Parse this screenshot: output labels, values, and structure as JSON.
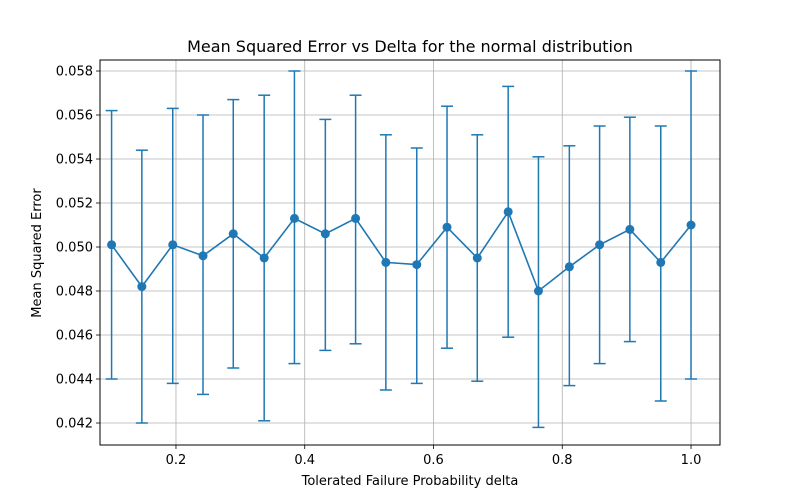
{
  "chart_data": {
    "type": "line",
    "title": "Mean Squared Error vs Delta for the normal distribution",
    "xlabel": "Tolerated Failure Probability delta",
    "ylabel": "Mean Squared Error",
    "xlim": [
      0.082,
      1.045
    ],
    "ylim": [
      0.041,
      0.0585
    ],
    "x_ticks": [
      0.2,
      0.4,
      0.6,
      0.8,
      1.0
    ],
    "x_tick_labels": [
      "0.2",
      "0.4",
      "0.6",
      "0.8",
      "1.0"
    ],
    "y_ticks": [
      0.042,
      0.044,
      0.046,
      0.048,
      0.05,
      0.052,
      0.054,
      0.056,
      0.058
    ],
    "y_tick_labels": [
      "0.042",
      "0.044",
      "0.046",
      "0.048",
      "0.050",
      "0.052",
      "0.054",
      "0.056",
      "0.058"
    ],
    "grid": true,
    "series_color": "#1f77b4",
    "series": [
      {
        "x": [
          0.1,
          0.147,
          0.195,
          0.242,
          0.289,
          0.337,
          0.384,
          0.432,
          0.479,
          0.526,
          0.574,
          0.621,
          0.668,
          0.716,
          0.763,
          0.811,
          0.858,
          0.905,
          0.953,
          1.0
        ],
        "y": [
          0.0501,
          0.0482,
          0.0501,
          0.0496,
          0.0506,
          0.0495,
          0.0513,
          0.0506,
          0.0513,
          0.0493,
          0.0492,
          0.0509,
          0.0495,
          0.0516,
          0.048,
          0.0491,
          0.0501,
          0.0508,
          0.0493,
          0.051
        ],
        "lower": [
          0.044,
          0.042,
          0.0438,
          0.0433,
          0.0445,
          0.0421,
          0.0447,
          0.0453,
          0.0456,
          0.0435,
          0.0438,
          0.0454,
          0.0439,
          0.0459,
          0.0418,
          0.0437,
          0.0447,
          0.0457,
          0.043,
          0.044
        ],
        "upper": [
          0.0562,
          0.0544,
          0.0563,
          0.056,
          0.0567,
          0.0569,
          0.058,
          0.0558,
          0.0569,
          0.0551,
          0.0545,
          0.0564,
          0.0551,
          0.0573,
          0.0541,
          0.0546,
          0.0555,
          0.0559,
          0.0555,
          0.058
        ]
      }
    ]
  }
}
